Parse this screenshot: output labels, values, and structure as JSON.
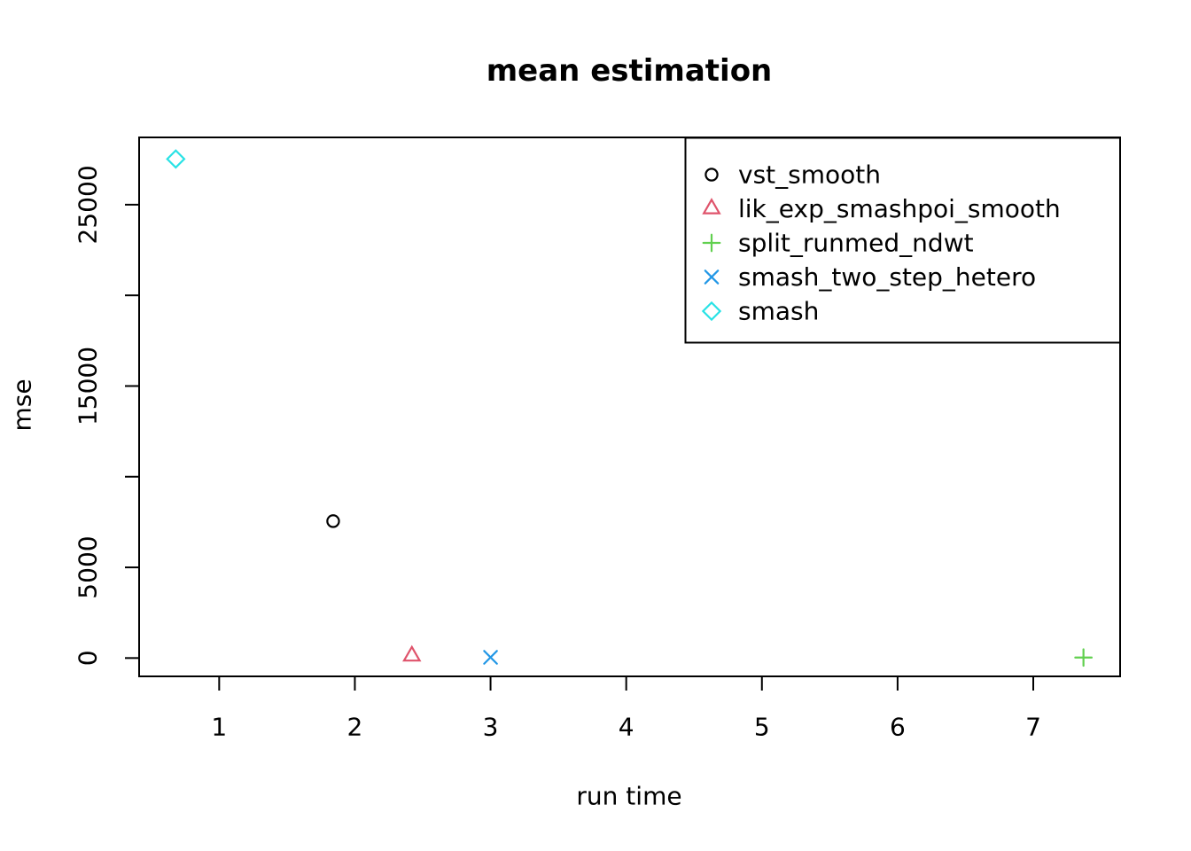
{
  "figure": {
    "background": "#ffffff",
    "foreground": "#000000"
  },
  "chart_data": {
    "type": "scatter",
    "title": "mean estimation",
    "xlabel": "run time",
    "ylabel": "mse",
    "xlim": [
      0.41,
      7.64
    ],
    "ylim": [
      -1010,
      28710
    ],
    "grid": false,
    "legend_position": "top-right",
    "x_ticks": [
      {
        "value": 1,
        "label": "1"
      },
      {
        "value": 2,
        "label": "2"
      },
      {
        "value": 3,
        "label": "3"
      },
      {
        "value": 4,
        "label": "4"
      },
      {
        "value": 5,
        "label": "5"
      },
      {
        "value": 6,
        "label": "6"
      },
      {
        "value": 7,
        "label": "7"
      }
    ],
    "y_ticks": [
      {
        "value": 0,
        "label": "0"
      },
      {
        "value": 5000,
        "label": "5000"
      },
      {
        "value": 10000,
        "label": ""
      },
      {
        "value": 15000,
        "label": "15000"
      },
      {
        "value": 20000,
        "label": ""
      },
      {
        "value": 25000,
        "label": "25000"
      }
    ],
    "series": [
      {
        "name": "vst_smooth",
        "symbol": "circle-icon",
        "color": "#000000",
        "points": [
          {
            "x": 1.84,
            "y": 7550
          }
        ]
      },
      {
        "name": "lik_exp_smashpoi_smooth",
        "symbol": "triangle-icon",
        "color": "#DF536B",
        "points": [
          {
            "x": 2.42,
            "y": 110
          }
        ]
      },
      {
        "name": "split_runmed_ndwt",
        "symbol": "plus-icon",
        "color": "#61D04F",
        "points": [
          {
            "x": 7.37,
            "y": 30
          }
        ]
      },
      {
        "name": "smash_two_step_hetero",
        "symbol": "x-icon",
        "color": "#2297E6",
        "points": [
          {
            "x": 3.0,
            "y": 40
          }
        ]
      },
      {
        "name": "smash",
        "symbol": "diamond-icon",
        "color": "#28E2E5",
        "points": [
          {
            "x": 0.68,
            "y": 27520
          }
        ]
      }
    ]
  }
}
